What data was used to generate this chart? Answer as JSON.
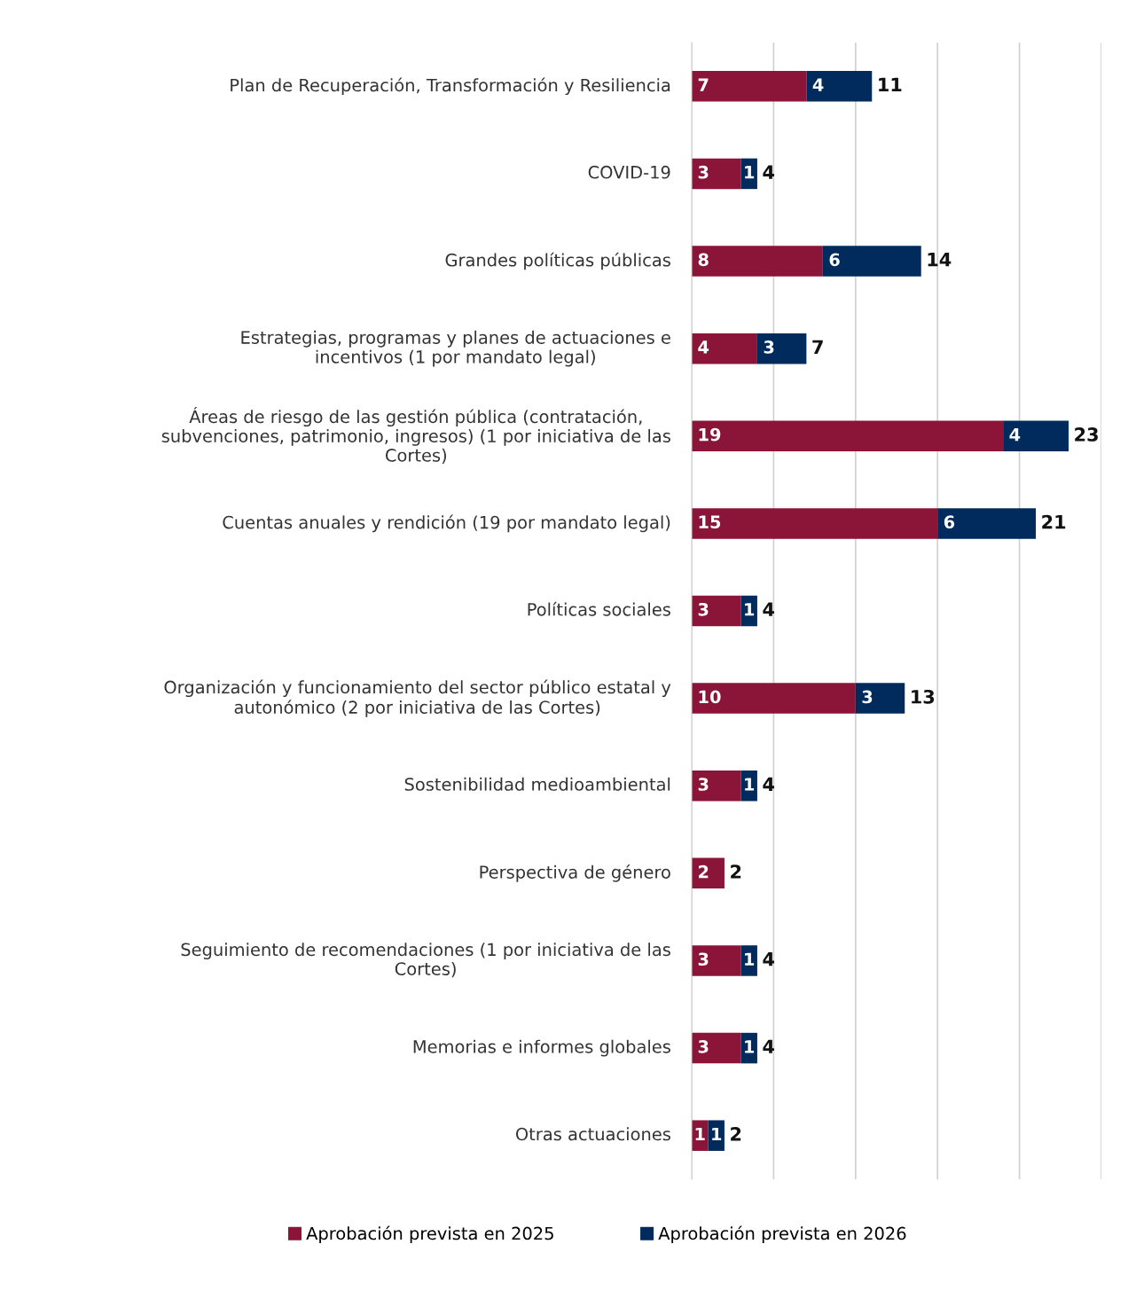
{
  "chart_data": {
    "type": "bar",
    "orientation": "horizontal",
    "stacked": true,
    "categories": [
      "Plan de Recuperación, Transformación y Resiliencia",
      "COVID-19",
      "Grandes políticas públicas",
      "Estrategias, programas y planes de actuaciones e incentivos (1 por mandato legal)",
      "Áreas de riesgo de las gestión pública (contratación, subvenciones, patrimonio, ingresos) (1 por iniciativa de las Cortes)",
      "Cuentas anuales y rendición (19 por mandato legal)",
      "Políticas sociales",
      "Organización y funcionamiento del sector público estatal y autonómico (2 por iniciativa de las Cortes)",
      "Sostenibilidad medioambiental",
      "Perspectiva de género",
      "Seguimiento de recomendaciones (1 por iniciativa de las Cortes)",
      "Memorias e informes globales",
      "Otras actuaciones"
    ],
    "series": [
      {
        "name": "Aprobación prevista en 2025",
        "color": "#8b1538",
        "values": [
          7,
          3,
          8,
          4,
          19,
          15,
          3,
          10,
          3,
          2,
          3,
          3,
          1
        ],
        "value_labels": [
          "7",
          "3",
          "8",
          "4",
          "19",
          "15",
          "3",
          "10",
          "3",
          "2",
          "3",
          "3",
          "1"
        ]
      },
      {
        "name": "Aprobación prevista en 2026",
        "color": "#002b5c",
        "values": [
          4,
          1,
          6,
          3,
          4,
          6,
          1,
          3,
          1,
          null,
          1,
          1,
          1
        ],
        "value_labels": [
          "4",
          "1",
          "6",
          "3",
          "4",
          "6",
          "1",
          "3",
          "1",
          null,
          "1",
          "1",
          "1"
        ]
      }
    ],
    "totals": [
      "11",
      "4",
      "14",
      "7",
      "23",
      "21",
      "4",
      "13",
      "4",
      "2",
      "4",
      "4",
      "2"
    ],
    "xlim": [
      0,
      25
    ],
    "xticks": [
      0,
      5,
      10,
      15,
      20,
      25
    ],
    "tick_labels": false,
    "grid": "x",
    "legend": "bottom"
  }
}
